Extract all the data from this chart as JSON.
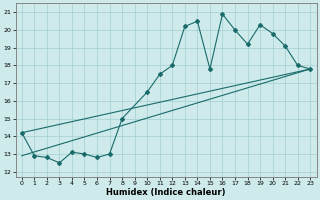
{
  "xlabel": "Humidex (Indice chaleur)",
  "bg_color": "#ceeaea",
  "line_color": "#1a6b6b",
  "grid_color": "#aad4d4",
  "xlim": [
    -0.5,
    23.5
  ],
  "ylim": [
    11.7,
    21.5
  ],
  "yticks": [
    12,
    13,
    14,
    15,
    16,
    17,
    18,
    19,
    20,
    21
  ],
  "xticks": [
    0,
    1,
    2,
    3,
    4,
    5,
    6,
    7,
    8,
    9,
    10,
    11,
    12,
    13,
    14,
    15,
    16,
    17,
    18,
    19,
    20,
    21,
    22,
    23
  ],
  "line1_x": [
    0,
    1,
    2,
    3,
    4,
    5,
    6,
    7,
    8,
    10,
    11,
    12,
    13,
    14,
    15,
    16,
    17,
    18,
    19,
    20,
    21,
    22,
    23
  ],
  "line1_y": [
    14.2,
    12.9,
    12.8,
    12.5,
    13.1,
    13.0,
    12.8,
    13.0,
    15.0,
    16.5,
    17.5,
    18.0,
    20.2,
    20.5,
    17.8,
    20.9,
    20.0,
    19.2,
    20.3,
    19.8,
    19.1,
    18.0,
    17.8
  ],
  "line2_x": [
    0,
    23
  ],
  "line2_y": [
    12.9,
    17.8
  ],
  "line3_x": [
    0,
    23
  ],
  "line3_y": [
    14.2,
    17.8
  ]
}
